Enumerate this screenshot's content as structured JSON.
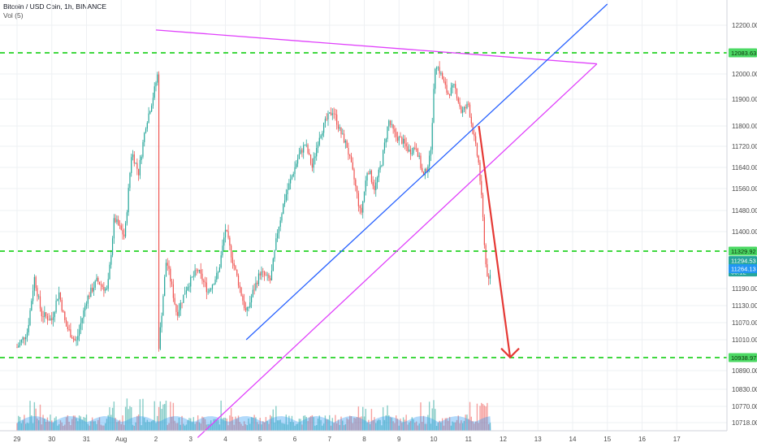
{
  "header": {
    "title": "Bitcoin / USD Coin, 1h, BINANCE",
    "volume_label": "Vol (5)"
  },
  "chart_data": {
    "type": "candlestick",
    "symbol": "Bitcoin / USD Coin",
    "timeframe": "1h",
    "exchange": "BINANCE",
    "ylim": [
      10670,
      12280
    ],
    "y_ticks": [
      10718.0,
      10770.0,
      10830.0,
      10890.0,
      10950.0,
      11010.0,
      11070.0,
      11130.0,
      11190.0,
      11264.13,
      11294.53,
      11329.92,
      11400.0,
      11480.0,
      11560.0,
      11640.0,
      11720.0,
      11800.0,
      11900.0,
      12000.0,
      12083.63,
      12200.0
    ],
    "y_tick_labels": [
      "10718.00",
      "10770.00",
      "10830.00",
      "10890.00",
      "",
      "11010.00",
      "11070.00",
      "11130.00",
      "11190.00",
      "",
      "",
      "",
      "11400.00",
      "11480.00",
      "11560.00",
      "11640.00",
      "11720.00",
      "11800.00",
      "11900.00",
      "12000.00",
      "",
      "12200.00"
    ],
    "x_ticks": [
      {
        "label": "29",
        "day": 0
      },
      {
        "label": "30",
        "day": 1
      },
      {
        "label": "31",
        "day": 2
      },
      {
        "label": "Aug",
        "day": 3
      },
      {
        "label": "2",
        "day": 4
      },
      {
        "label": "3",
        "day": 5
      },
      {
        "label": "4",
        "day": 6
      },
      {
        "label": "5",
        "day": 7
      },
      {
        "label": "6",
        "day": 8
      },
      {
        "label": "7",
        "day": 9
      },
      {
        "label": "8",
        "day": 10
      },
      {
        "label": "9",
        "day": 11
      },
      {
        "label": "10",
        "day": 12
      },
      {
        "label": "11",
        "day": 13
      },
      {
        "label": "12",
        "day": 14
      },
      {
        "label": "13",
        "day": 15
      },
      {
        "label": "14",
        "day": 16
      },
      {
        "label": "15",
        "day": 17
      },
      {
        "label": "16",
        "day": 18
      },
      {
        "label": "17",
        "day": 19
      }
    ],
    "price_path": [
      [
        0,
        10980
      ],
      [
        0.3,
        11040
      ],
      [
        0.5,
        11230
      ],
      [
        0.7,
        11100
      ],
      [
        1.0,
        11080
      ],
      [
        1.2,
        11180
      ],
      [
        1.4,
        11060
      ],
      [
        1.7,
        11000
      ],
      [
        2.0,
        11150
      ],
      [
        2.3,
        11220
      ],
      [
        2.6,
        11180
      ],
      [
        2.8,
        11450
      ],
      [
        3.1,
        11380
      ],
      [
        3.3,
        11700
      ],
      [
        3.5,
        11620
      ],
      [
        3.7,
        11800
      ],
      [
        3.9,
        11900
      ],
      [
        4.05,
        12000
      ],
      [
        4.08,
        10980
      ],
      [
        4.3,
        11300
      ],
      [
        4.6,
        11100
      ],
      [
        4.9,
        11200
      ],
      [
        5.2,
        11260
      ],
      [
        5.5,
        11180
      ],
      [
        5.8,
        11250
      ],
      [
        6.0,
        11410
      ],
      [
        6.2,
        11300
      ],
      [
        6.4,
        11200
      ],
      [
        6.6,
        11100
      ],
      [
        6.8,
        11180
      ],
      [
        7.0,
        11250
      ],
      [
        7.3,
        11220
      ],
      [
        7.5,
        11400
      ],
      [
        7.7,
        11520
      ],
      [
        7.9,
        11600
      ],
      [
        8.1,
        11680
      ],
      [
        8.3,
        11730
      ],
      [
        8.5,
        11640
      ],
      [
        8.7,
        11760
      ],
      [
        8.9,
        11820
      ],
      [
        9.1,
        11860
      ],
      [
        9.3,
        11780
      ],
      [
        9.5,
        11720
      ],
      [
        9.7,
        11600
      ],
      [
        9.9,
        11460
      ],
      [
        10.1,
        11640
      ],
      [
        10.3,
        11560
      ],
      [
        10.5,
        11660
      ],
      [
        10.7,
        11820
      ],
      [
        10.9,
        11760
      ],
      [
        11.1,
        11740
      ],
      [
        11.3,
        11700
      ],
      [
        11.5,
        11720
      ],
      [
        11.7,
        11600
      ],
      [
        11.9,
        11680
      ],
      [
        12.05,
        12050
      ],
      [
        12.2,
        12000
      ],
      [
        12.4,
        11920
      ],
      [
        12.6,
        11950
      ],
      [
        12.8,
        11850
      ],
      [
        13.0,
        11880
      ],
      [
        13.15,
        11760
      ],
      [
        13.3,
        11650
      ],
      [
        13.4,
        11480
      ],
      [
        13.5,
        11280
      ],
      [
        13.6,
        11200
      ],
      [
        13.65,
        11270
      ]
    ],
    "horizontal_levels": [
      {
        "value": 12083.63,
        "label": "12083.63",
        "color": "#00cc00"
      },
      {
        "value": 11329.92,
        "label": "11329.92",
        "color": "#00cc00"
      },
      {
        "value": 10938.97,
        "label": "10938.97",
        "color": "#00cc00"
      }
    ],
    "price_tags": [
      {
        "value": 11294.53,
        "label": "11294.53",
        "color": "#26a69a"
      },
      {
        "value": 11252.0,
        "label": "00:12",
        "color": "#26a69a"
      },
      {
        "value": 11264.13,
        "label": "11264.13",
        "color": "#2196f3"
      }
    ],
    "trend_lines": [
      {
        "name": "magenta-top",
        "color": "#e040fb",
        "points": [
          [
            4.0,
            12180
          ],
          [
            16.7,
            12040
          ]
        ]
      },
      {
        "name": "magenta-bottom",
        "color": "#e040fb",
        "points": [
          [
            5.2,
            10670
          ],
          [
            16.7,
            12040
          ]
        ]
      },
      {
        "name": "blue-support",
        "color": "#2962ff",
        "points": [
          [
            6.6,
            11010
          ],
          [
            17.0,
            12280
          ]
        ]
      },
      {
        "name": "red-forecast-arrow",
        "color": "#e53935",
        "points": [
          [
            13.3,
            11800
          ],
          [
            14.2,
            10940
          ]
        ]
      }
    ],
    "volume_ylim": [
      0,
      1
    ]
  }
}
